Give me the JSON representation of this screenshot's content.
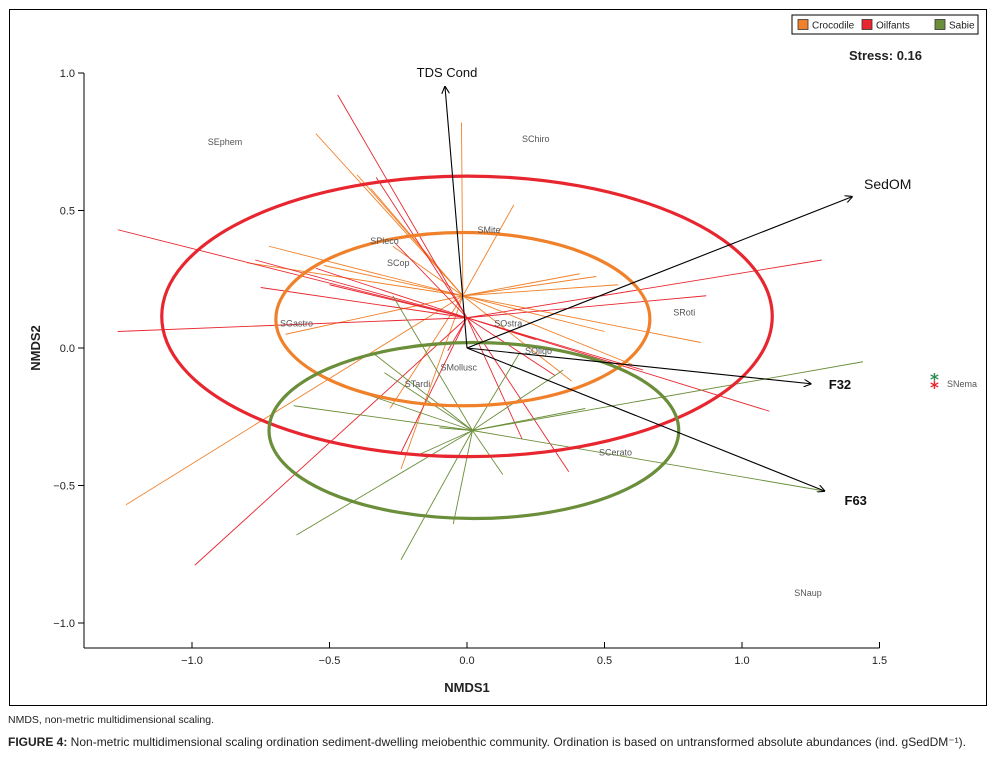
{
  "chart_data": {
    "type": "scatter",
    "subtype": "NMDS ordination biplot with group spiders, ellipses and environmental vectors",
    "xlabel": "NMDS1",
    "ylabel": "NMDS2",
    "xlim": [
      -1.4,
      1.5
    ],
    "ylim": [
      -1.05,
      1.0
    ],
    "xticks": [
      -1.0,
      -0.5,
      0.0,
      0.5,
      1.0,
      1.5
    ],
    "xtick_labels": [
      "−1.0",
      "−0.5",
      "0.0",
      "0.5",
      "1.0",
      "1.5"
    ],
    "yticks": [
      1.0,
      0.5,
      0.0,
      -0.5,
      -1.0
    ],
    "ytick_labels": [
      "1.0",
      "0.5",
      "0.0",
      "−0.5",
      "−1.0"
    ],
    "grid": false,
    "stress_label": "Stress: 0.16",
    "legend": {
      "placement": "top-right",
      "entries": [
        {
          "name": "Crocodile",
          "color": "#f0812a"
        },
        {
          "name": "Oilfants",
          "color": "#e8262f"
        },
        {
          "name": "Sabie",
          "color": "#6b8e3a"
        }
      ]
    },
    "groups": [
      {
        "name": "Crocodile",
        "color": "#f0812a",
        "centroid": [
          -0.015,
          0.19
        ],
        "ellipse": {
          "center": [
            -0.015,
            0.105
          ],
          "rx": 0.68,
          "ry": 0.315
        },
        "sites": [
          [
            -0.55,
            0.78
          ],
          [
            -0.52,
            0.3
          ],
          [
            -0.8,
            0.31
          ],
          [
            -0.72,
            0.37
          ],
          [
            -0.4,
            0.63
          ],
          [
            -0.35,
            0.58
          ],
          [
            -0.27,
            0.37
          ],
          [
            -0.28,
            -0.22
          ],
          [
            -0.24,
            -0.44
          ],
          [
            -1.24,
            -0.57
          ],
          [
            -0.66,
            0.05
          ],
          [
            0.17,
            0.52
          ],
          [
            0.41,
            0.27
          ],
          [
            0.55,
            0.23
          ],
          [
            0.5,
            0.06
          ],
          [
            0.85,
            0.02
          ],
          [
            0.6,
            -0.06
          ],
          [
            0.47,
            0.26
          ],
          [
            -0.02,
            0.82
          ],
          [
            0.38,
            -0.12
          ]
        ]
      },
      {
        "name": "Oilfants",
        "color": "#e8262f",
        "centroid": [
          0.0,
          0.11
        ],
        "ellipse": {
          "center": [
            0.0,
            0.115
          ],
          "rx": 1.11,
          "ry": 0.51
        },
        "sites": [
          [
            -1.27,
            0.43
          ],
          [
            -0.77,
            0.32
          ],
          [
            -0.75,
            0.22
          ],
          [
            -0.55,
            0.29
          ],
          [
            -1.27,
            0.06
          ],
          [
            -0.5,
            0.23
          ],
          [
            -0.26,
            0.38
          ],
          [
            -0.47,
            0.92
          ],
          [
            -0.33,
            0.62
          ],
          [
            -0.24,
            -0.38
          ],
          [
            -0.99,
            -0.79
          ],
          [
            -0.07,
            -0.01
          ],
          [
            0.2,
            -0.33
          ],
          [
            1.29,
            0.32
          ],
          [
            0.87,
            0.19
          ],
          [
            0.64,
            -0.08
          ],
          [
            1.1,
            -0.23
          ],
          [
            0.37,
            -0.45
          ],
          [
            0.32,
            -0.1
          ],
          [
            0.25,
            0.03
          ]
        ]
      },
      {
        "name": "Sabie",
        "color": "#6b8e3a",
        "centroid": [
          0.02,
          -0.3
        ],
        "ellipse": {
          "center": [
            0.025,
            -0.3
          ],
          "rx": 0.745,
          "ry": 0.32
        },
        "sites": [
          [
            -0.27,
            0.19
          ],
          [
            -0.34,
            -0.02
          ],
          [
            -0.3,
            -0.09
          ],
          [
            -0.63,
            -0.21
          ],
          [
            -0.42,
            -0.15
          ],
          [
            -0.62,
            -0.68
          ],
          [
            -0.24,
            -0.77
          ],
          [
            -0.05,
            -0.64
          ],
          [
            0.13,
            -0.46
          ],
          [
            0.19,
            -0.02
          ],
          [
            0.35,
            -0.08
          ],
          [
            1.44,
            -0.05
          ],
          [
            1.3,
            -0.52
          ],
          [
            0.43,
            -0.22
          ],
          [
            -0.18,
            -0.39
          ],
          [
            -0.1,
            -0.29
          ]
        ]
      }
    ],
    "species_scores": [
      {
        "label": "SEphem",
        "x": -0.88,
        "y": 0.75
      },
      {
        "label": "SChiro",
        "x": 0.25,
        "y": 0.76
      },
      {
        "label": "SMite",
        "x": 0.08,
        "y": 0.43
      },
      {
        "label": "SPleco",
        "x": -0.3,
        "y": 0.39
      },
      {
        "label": "SCop",
        "x": -0.25,
        "y": 0.31
      },
      {
        "label": "SGastro",
        "x": -0.62,
        "y": 0.09
      },
      {
        "label": "SOstra",
        "x": 0.15,
        "y": 0.09
      },
      {
        "label": "SRoti",
        "x": 0.79,
        "y": 0.13
      },
      {
        "label": "SOligo",
        "x": 0.26,
        "y": -0.01
      },
      {
        "label": "SMollusc",
        "x": -0.03,
        "y": -0.07
      },
      {
        "label": "STardi",
        "x": -0.18,
        "y": -0.13
      },
      {
        "label": "SCerato",
        "x": 0.54,
        "y": -0.38
      },
      {
        "label": "SNema",
        "x": 1.8,
        "y": -0.13
      },
      {
        "label": "SNaup",
        "x": 1.24,
        "y": -0.89
      }
    ],
    "snema_markers": [
      {
        "group": "Sabie",
        "x": 1.7,
        "y": -0.11
      },
      {
        "group": "Oilfants",
        "x": 1.7,
        "y": -0.14
      }
    ],
    "env_vectors": [
      {
        "label": "TDS Cond",
        "origin": [
          0.0,
          -0.0
        ],
        "end": [
          -0.08,
          0.95
        ]
      },
      {
        "label": "SedOM",
        "origin": [
          0.0,
          -0.0
        ],
        "end": [
          1.4,
          0.55
        ]
      },
      {
        "label": "F32",
        "origin": [
          0.0,
          -0.0
        ],
        "end": [
          1.25,
          -0.13
        ]
      },
      {
        "label": "F63",
        "origin": [
          0.0,
          -0.0
        ],
        "end": [
          1.3,
          -0.52
        ]
      }
    ]
  },
  "notes": {
    "abbreviation": "NMDS, non-metric multidimensional scaling.",
    "figure_label": "FIGURE 4:",
    "figure_caption": " Non-metric multidimensional scaling ordination sediment-dwelling meiobenthic community. Ordination is based on untransformed absolute abundances (ind. gSedDM⁻¹)."
  }
}
